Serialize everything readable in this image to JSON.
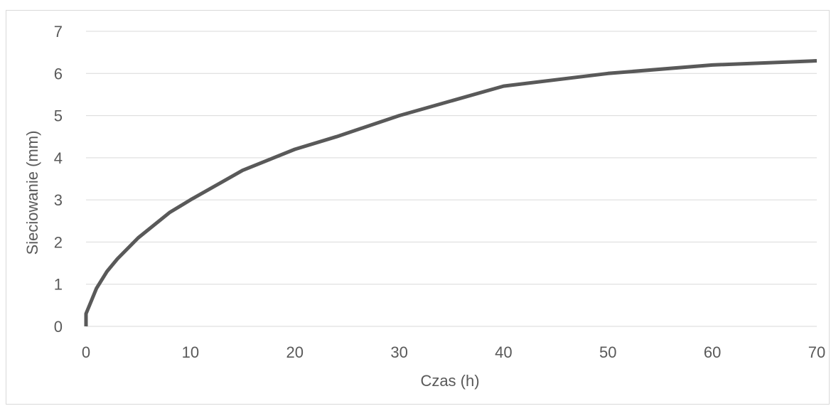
{
  "chart_data": {
    "type": "line",
    "title": "",
    "xlabel": "Czas (h)",
    "ylabel": "Sieciowanie (mm)",
    "xlim": [
      0,
      70
    ],
    "ylim": [
      0,
      7
    ],
    "x_ticks": [
      "0",
      "10",
      "20",
      "30",
      "40",
      "50",
      "60",
      "70"
    ],
    "y_ticks": [
      "0",
      "1",
      "2",
      "3",
      "4",
      "5",
      "6",
      "7"
    ],
    "grid": "horizontal",
    "legend": "none",
    "series": [
      {
        "color": "#595959",
        "x": [
          0,
          0,
          1,
          2,
          3,
          5,
          8,
          10,
          15,
          20,
          24,
          30,
          40,
          50,
          60,
          70
        ],
        "y": [
          0,
          0.3,
          0.9,
          1.3,
          1.6,
          2.1,
          2.7,
          3.0,
          3.7,
          4.2,
          4.5,
          5.0,
          5.7,
          6.0,
          6.2,
          6.3
        ]
      }
    ]
  }
}
